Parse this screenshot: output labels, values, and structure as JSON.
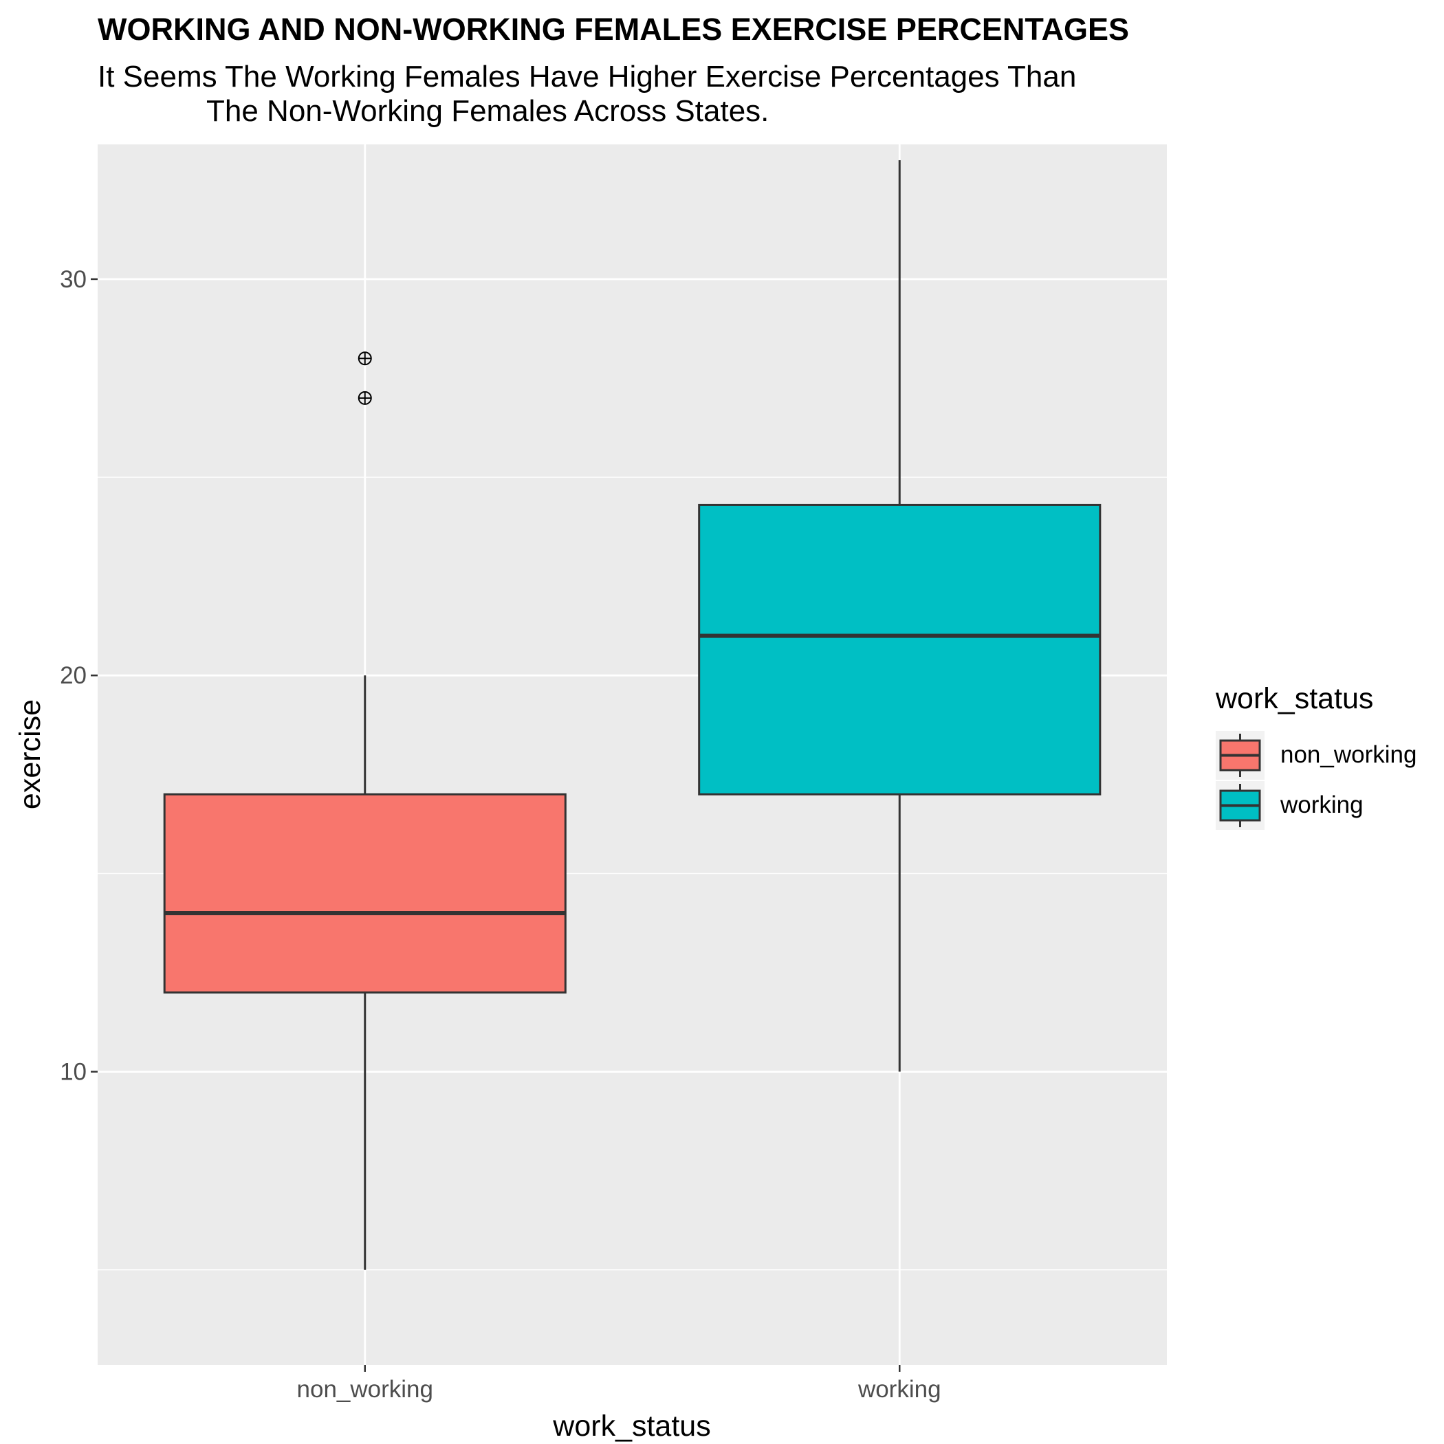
{
  "chart_data": {
    "type": "boxplot",
    "title": "WORKING AND NON-WORKING FEMALES EXERCISE PERCENTAGES",
    "subtitle_lines": [
      "It Seems The Working Females Have Higher Exercise Percentages Than",
      "The Non-Working Females Across States."
    ],
    "xlabel": "work_status",
    "ylabel": "exercise",
    "categories": [
      "non_working",
      "working"
    ],
    "ylim": [
      2.6,
      33.4
    ],
    "y_ticks": [
      10,
      20,
      30
    ],
    "y_minor_ticks": [
      5,
      15,
      25
    ],
    "grid": true,
    "legend": {
      "title": "work_status",
      "position": "right",
      "entries": [
        "non_working",
        "working"
      ]
    },
    "series": [
      {
        "category": "non_working",
        "whisker_low": 5,
        "q1": 12,
        "median": 14,
        "q3": 17,
        "whisker_high": 20,
        "outliers": [
          27,
          28
        ],
        "color": "#F8766D"
      },
      {
        "category": "working",
        "whisker_low": 10,
        "q1": 17,
        "median": 21,
        "q3": 24.3,
        "whisker_high": 33,
        "outliers": [],
        "color": "#00BFC4"
      }
    ]
  }
}
